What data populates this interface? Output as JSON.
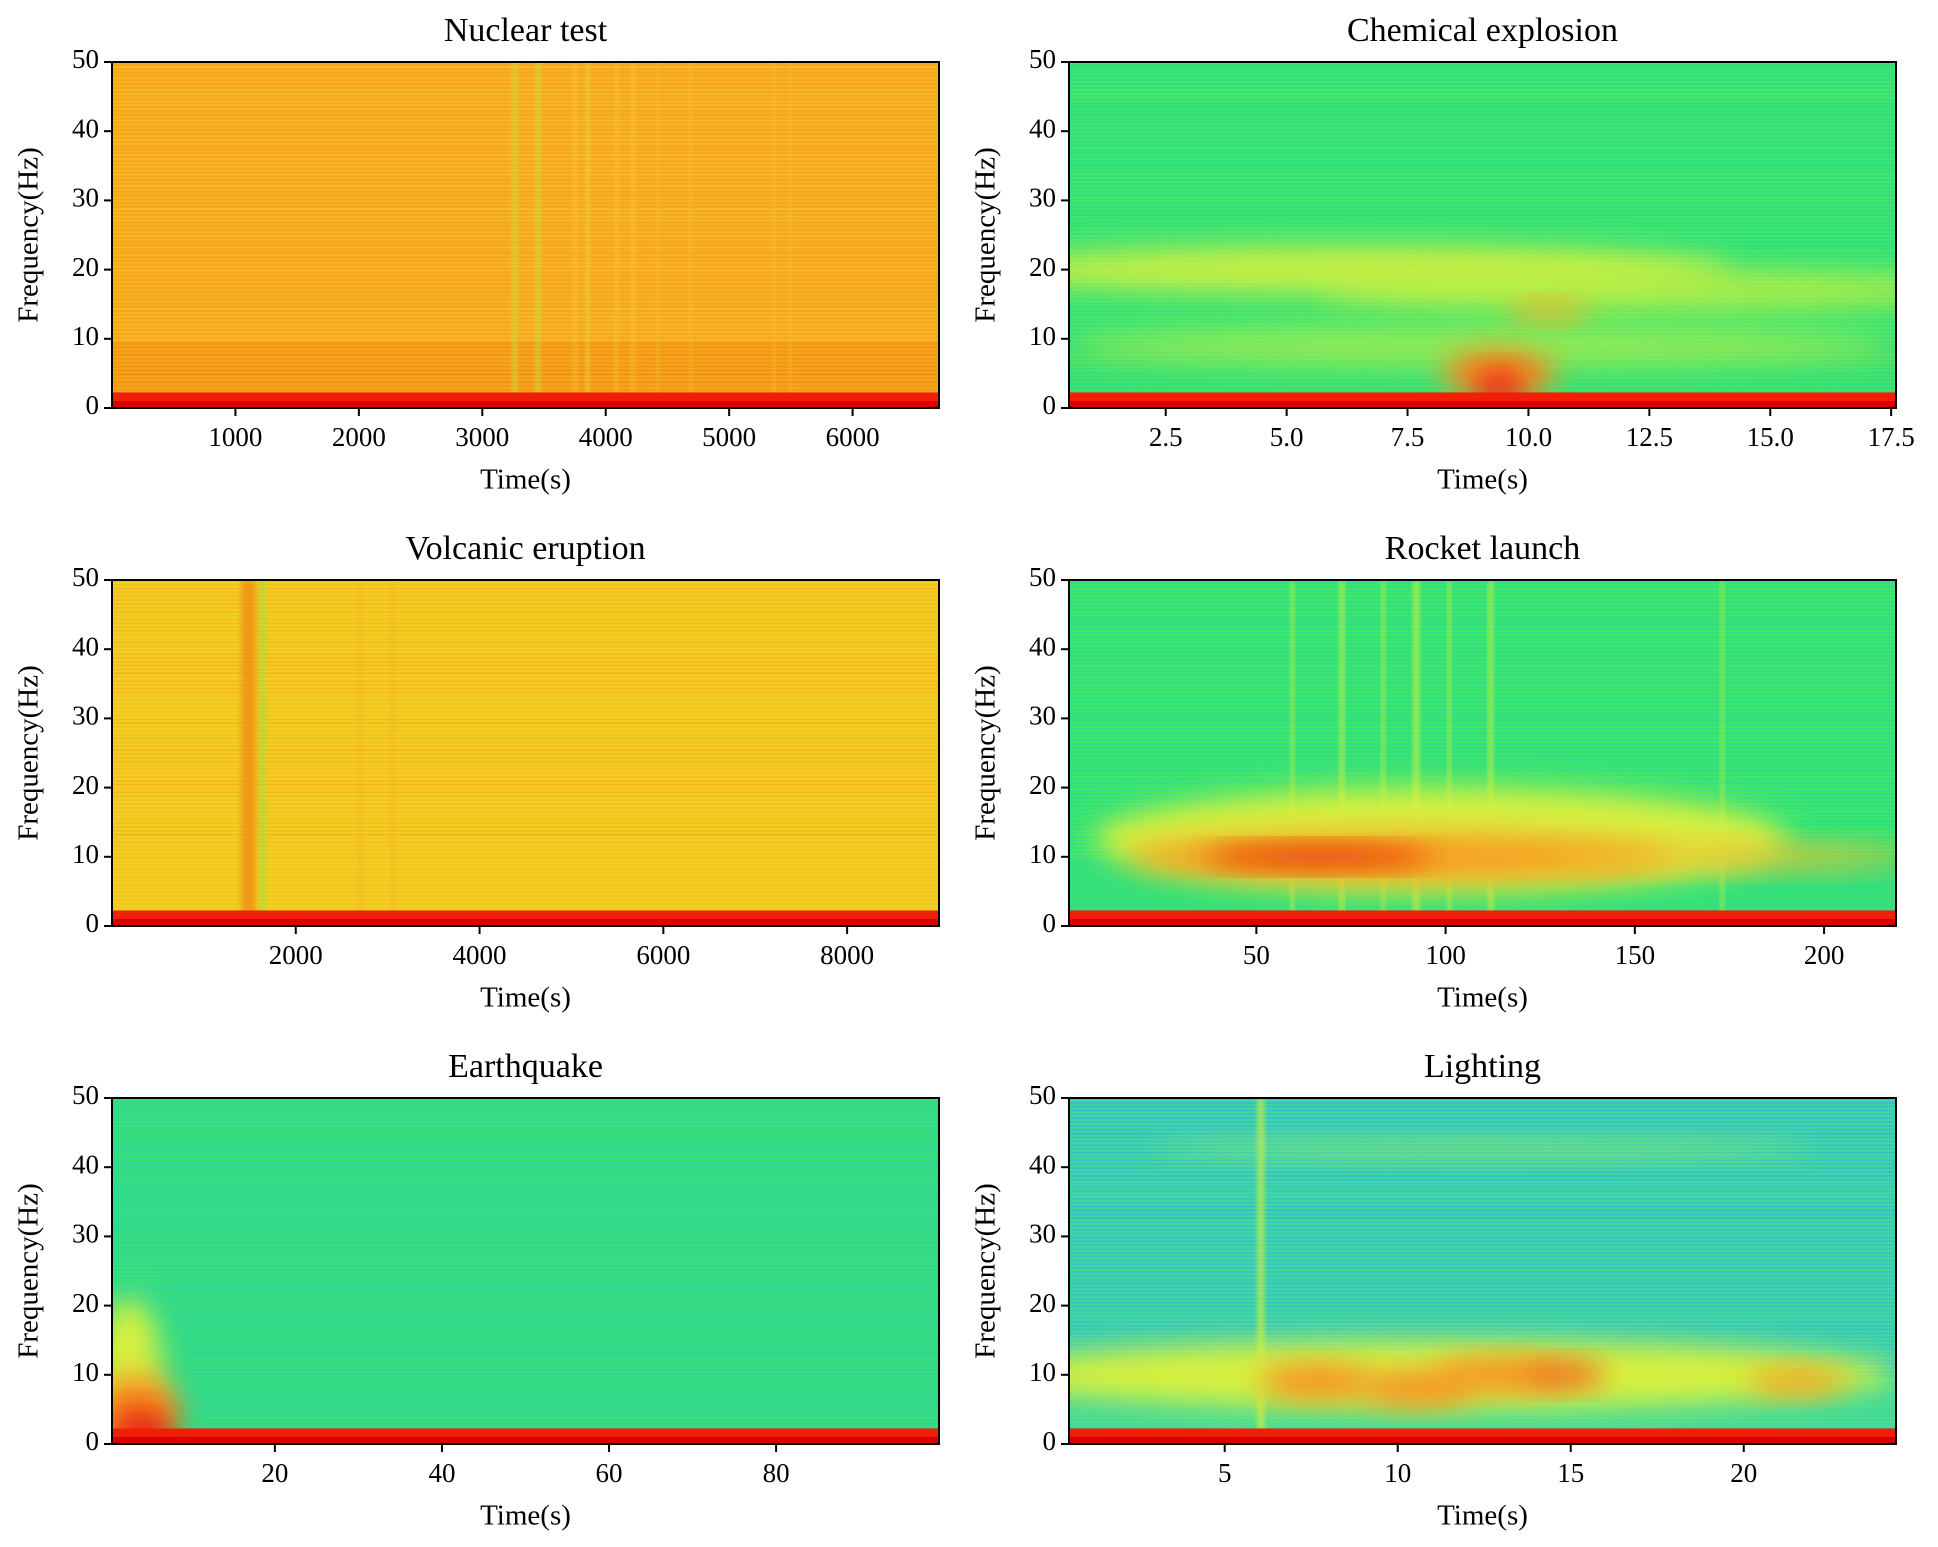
{
  "chart_data": [
    {
      "type": "spectrogram",
      "title": "Nuclear test",
      "xlabel": "Time(s)",
      "ylabel": "Frequency(Hz)",
      "xlim": [
        0,
        6700
      ],
      "ylim": [
        0,
        50
      ],
      "xticks": [
        1000,
        2000,
        3000,
        4000,
        5000,
        6000
      ],
      "yticks": [
        0,
        10,
        20,
        30,
        40,
        50
      ]
    },
    {
      "type": "spectrogram",
      "title": "Chemical explosion",
      "xlabel": "Time(s)",
      "ylabel": "Frequency(Hz)",
      "xlim": [
        0.5,
        17.6
      ],
      "ylim": [
        0,
        50
      ],
      "xticks": [
        2.5,
        {
          "value": 5,
          "label": "5.0"
        },
        7.5,
        {
          "value": 10,
          "label": "10.0"
        },
        12.5,
        {
          "value": 15,
          "label": "15.0"
        },
        17.5
      ],
      "yticks": [
        0,
        10,
        20,
        30,
        40,
        50
      ]
    },
    {
      "type": "spectrogram",
      "title": "Volcanic eruption",
      "xlabel": "Time(s)",
      "ylabel": "Frequency(Hz)",
      "xlim": [
        0,
        9000
      ],
      "ylim": [
        0,
        50
      ],
      "xticks": [
        2000,
        4000,
        6000,
        8000
      ],
      "yticks": [
        0,
        10,
        20,
        30,
        40,
        50
      ]
    },
    {
      "type": "spectrogram",
      "title": "Rocket launch",
      "xlabel": "Time(s)",
      "ylabel": "Frequency(Hz)",
      "xlim": [
        0.5,
        219
      ],
      "ylim": [
        0,
        50
      ],
      "xticks": [
        50,
        100,
        150,
        200
      ],
      "yticks": [
        0,
        10,
        20,
        30,
        40,
        50
      ]
    },
    {
      "type": "spectrogram",
      "title": "Earthquake",
      "xlabel": "Time(s)",
      "ylabel": "Frequency(Hz)",
      "xlim": [
        0.5,
        99.5
      ],
      "ylim": [
        0,
        50
      ],
      "xticks": [
        20,
        40,
        60,
        80
      ],
      "yticks": [
        0,
        10,
        20,
        30,
        40,
        50
      ]
    },
    {
      "type": "spectrogram",
      "title": "Lighting",
      "xlabel": "Time(s)",
      "ylabel": "Frequency(Hz)",
      "xlim": [
        0.5,
        24.4
      ],
      "ylim": [
        0,
        50
      ],
      "xticks": [
        5,
        10,
        15,
        20
      ],
      "yticks": [
        0,
        10,
        20,
        30,
        40,
        50
      ]
    }
  ]
}
